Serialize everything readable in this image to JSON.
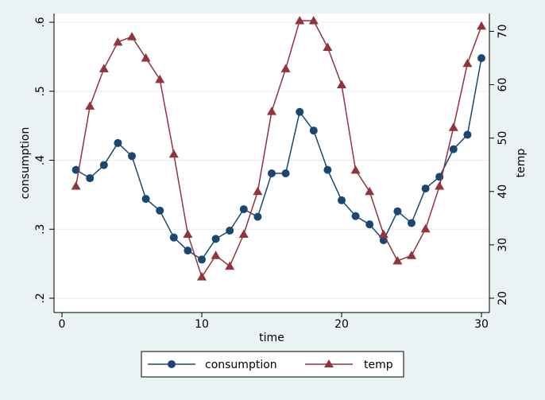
{
  "colors": {
    "background": "#eaf2f3",
    "plot_background": "#ffffff",
    "grid": "#e6eded",
    "axis": "#000000",
    "consumption": "#1a476f",
    "temp": "#90353b"
  },
  "chart_data": {
    "type": "line",
    "xlabel": "time",
    "ylabel": "consumption",
    "y2label": "temp",
    "xlim": [
      0,
      30
    ],
    "ylim": [
      0.2,
      0.6
    ],
    "y2lim": [
      20,
      72
    ],
    "xticks": [
      0,
      10,
      20,
      30
    ],
    "yticks": [
      0.2,
      0.3,
      0.4,
      0.5,
      0.6
    ],
    "ytick_labels": [
      ".2",
      ".3",
      ".4",
      ".5",
      ".6"
    ],
    "y2ticks": [
      20,
      30,
      40,
      50,
      60,
      70
    ],
    "grid": true,
    "legend_position": "bottom",
    "x": [
      1,
      2,
      3,
      4,
      5,
      6,
      7,
      8,
      9,
      10,
      11,
      12,
      13,
      14,
      15,
      16,
      17,
      18,
      19,
      20,
      21,
      22,
      23,
      24,
      25,
      26,
      27,
      28,
      29,
      30
    ],
    "series": [
      {
        "name": "consumption",
        "axis": "left",
        "marker": "circle",
        "values": [
          0.386,
          0.374,
          0.393,
          0.425,
          0.406,
          0.344,
          0.327,
          0.288,
          0.269,
          0.256,
          0.286,
          0.298,
          0.329,
          0.318,
          0.381,
          0.381,
          0.47,
          0.443,
          0.386,
          0.342,
          0.319,
          0.307,
          0.284,
          0.326,
          0.309,
          0.359,
          0.376,
          0.416,
          0.437,
          0.548
        ]
      },
      {
        "name": "temp",
        "axis": "right",
        "marker": "triangle",
        "values": [
          41,
          56,
          63,
          68,
          69,
          65,
          61,
          47,
          32,
          24,
          28,
          26,
          32,
          40,
          55,
          63,
          72,
          72,
          67,
          60,
          44,
          40,
          32,
          27,
          28,
          33,
          41,
          52,
          64,
          71
        ]
      }
    ]
  }
}
